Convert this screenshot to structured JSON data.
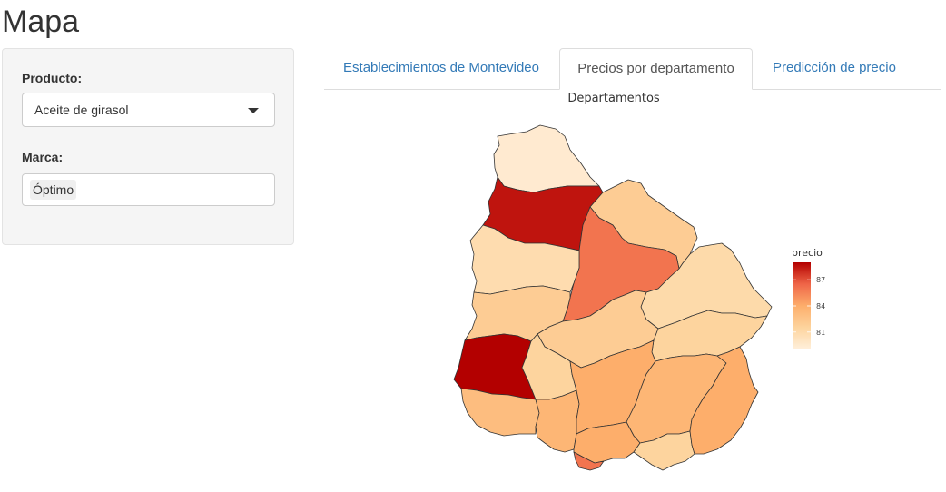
{
  "page": {
    "title": "Mapa"
  },
  "sidebar": {
    "product_label": "Producto:",
    "product_value": "Aceite de girasol",
    "brand_label": "Marca:",
    "brand_tag": "Óptimo"
  },
  "tabs": [
    {
      "label": "Establecimientos de Montevideo",
      "active": false
    },
    {
      "label": "Precios por departamento",
      "active": true
    },
    {
      "label": "Predicción de precio",
      "active": false
    }
  ],
  "map": {
    "title": "Departamentos",
    "legend_title": "precio",
    "legend_ticks": [
      "87",
      "84",
      "81"
    ],
    "color_low": "#fff0dc",
    "color_high": "#b30000"
  },
  "chart_data": {
    "type": "choropleth",
    "title": "Departamentos",
    "legend": {
      "title": "precio",
      "ticks": [
        87,
        84,
        81
      ],
      "range": [
        79,
        89
      ]
    },
    "regions": [
      {
        "id": "artigas",
        "value": 79.5
      },
      {
        "id": "salto",
        "value": 88.5
      },
      {
        "id": "rivera",
        "value": 82.0
      },
      {
        "id": "tacuarembo",
        "value": 86.0
      },
      {
        "id": "paysandu",
        "value": 80.8
      },
      {
        "id": "cerro-largo",
        "value": 81.0
      },
      {
        "id": "rio-negro",
        "value": 82.0
      },
      {
        "id": "durazno",
        "value": 82.0
      },
      {
        "id": "treinta-y-tres",
        "value": 81.5
      },
      {
        "id": "soriano",
        "value": 89.0
      },
      {
        "id": "flores",
        "value": 81.5
      },
      {
        "id": "colonia",
        "value": 83.0
      },
      {
        "id": "san-jose",
        "value": 83.5
      },
      {
        "id": "florida",
        "value": 84.0
      },
      {
        "id": "lavalleja",
        "value": 83.5
      },
      {
        "id": "canelones",
        "value": 84.0
      },
      {
        "id": "montevideo",
        "value": 86.0
      },
      {
        "id": "maldonado",
        "value": 81.5
      },
      {
        "id": "rocha",
        "value": 84.0
      }
    ]
  }
}
